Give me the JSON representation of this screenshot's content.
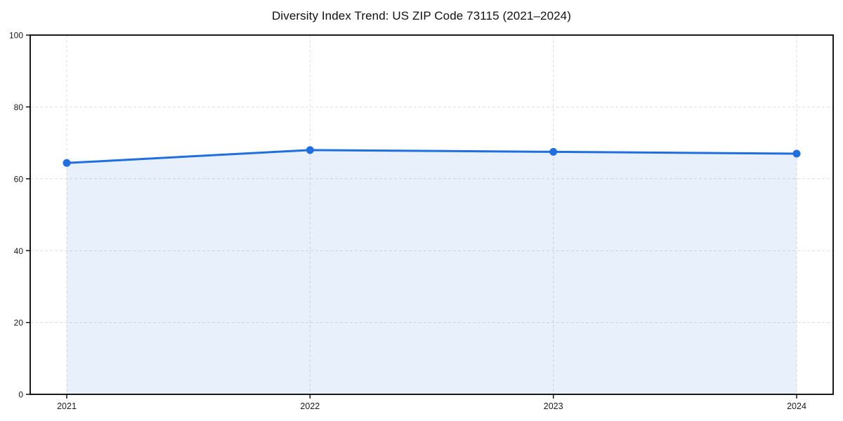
{
  "chart_data": {
    "type": "area",
    "title": "Diversity Index Trend: US ZIP Code 73115 (2021–2024)",
    "categories": [
      "2021",
      "2022",
      "2023",
      "2024"
    ],
    "series": [
      {
        "name": "Diversity Index",
        "values": [
          64.4,
          68.0,
          67.5,
          67.0
        ]
      }
    ],
    "xlabel": "",
    "ylabel": "",
    "ylim": [
      0,
      100
    ],
    "yticks": [
      0,
      20,
      40,
      60,
      80,
      100
    ],
    "grid": "dashed-both-axes",
    "legend_position": "none",
    "colors": {
      "line": "#1f6fe0",
      "marker": "#1f6fe0",
      "fill": "#1f6fe0",
      "fill_opacity": 0.1,
      "grid": "#dedede",
      "axis": "#000000",
      "tick_label": "#1a1a1a",
      "title": "#111111",
      "background": "#ffffff"
    }
  }
}
